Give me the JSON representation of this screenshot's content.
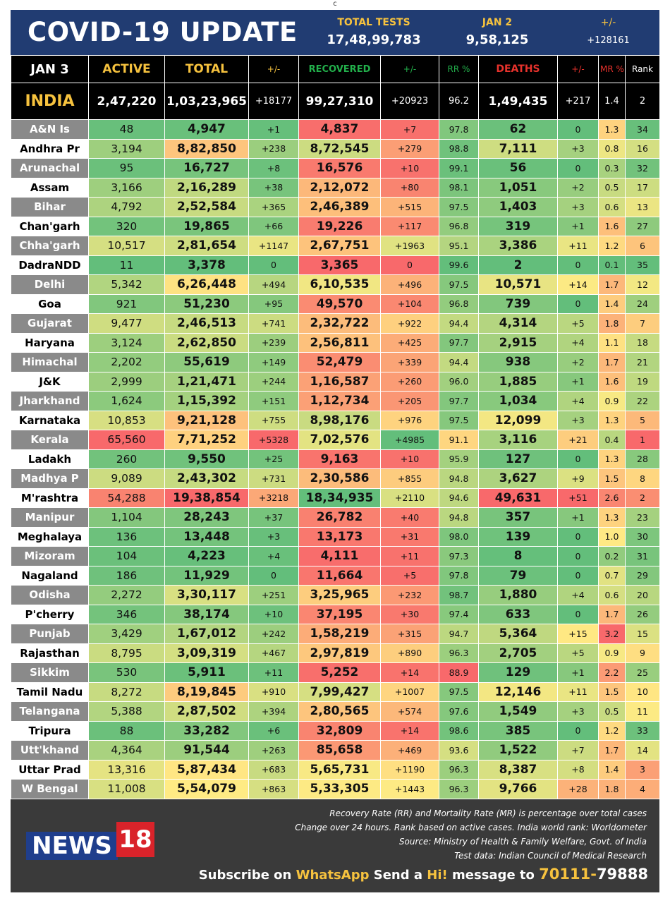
{
  "topmark": "c",
  "header": {
    "title": "COVID-19 UPDATE",
    "total_tests_label": "TOTAL TESTS",
    "total_tests_value": "17,48,99,783",
    "jan2_label": "JAN 2",
    "jan2_value": "9,58,125",
    "pm_label": "+/-",
    "pm_value": "+128161"
  },
  "columns": {
    "date": "JAN 3",
    "active": "ACTIVE",
    "total": "TOTAL",
    "total_change": "+/-",
    "recovered": "RECOVERED",
    "recovered_change": "+/-",
    "rr": "RR %",
    "deaths": "DEATHS",
    "deaths_change": "+/-",
    "mr": "MR %",
    "rank": "Rank"
  },
  "india": {
    "name": "INDIA",
    "active": "2,47,220",
    "total": "1,03,23,965",
    "total_change": "+18177",
    "recovered": "99,27,310",
    "recovered_change": "+20923",
    "rr": "96.2",
    "deaths": "1,49,435",
    "deaths_change": "+217",
    "mr": "1.4",
    "rank": "2"
  },
  "states": [
    {
      "name": "A&N Is",
      "active": "48",
      "total": "4,947",
      "tc": "+1",
      "rec": "4,837",
      "rc": "+7",
      "rr": "97.8",
      "deaths": "62",
      "dc": "0",
      "mr": "1.3",
      "rank": "34"
    },
    {
      "name": "Andhra Pr",
      "active": "3,194",
      "total": "8,82,850",
      "tc": "+238",
      "rec": "8,72,545",
      "rc": "+279",
      "rr": "98.8",
      "deaths": "7,111",
      "dc": "+3",
      "mr": "0.8",
      "rank": "16"
    },
    {
      "name": "Arunachal",
      "active": "95",
      "total": "16,727",
      "tc": "+8",
      "rec": "16,576",
      "rc": "+10",
      "rr": "99.1",
      "deaths": "56",
      "dc": "0",
      "mr": "0.3",
      "rank": "32"
    },
    {
      "name": "Assam",
      "active": "3,166",
      "total": "2,16,289",
      "tc": "+38",
      "rec": "2,12,072",
      "rc": "+80",
      "rr": "98.1",
      "deaths": "1,051",
      "dc": "+2",
      "mr": "0.5",
      "rank": "17"
    },
    {
      "name": "Bihar",
      "active": "4,792",
      "total": "2,52,584",
      "tc": "+365",
      "rec": "2,46,389",
      "rc": "+515",
      "rr": "97.5",
      "deaths": "1,403",
      "dc": "+3",
      "mr": "0.6",
      "rank": "13"
    },
    {
      "name": "Chan'garh",
      "active": "320",
      "total": "19,865",
      "tc": "+66",
      "rec": "19,226",
      "rc": "+117",
      "rr": "96.8",
      "deaths": "319",
      "dc": "+1",
      "mr": "1.6",
      "rank": "27"
    },
    {
      "name": "Chha'garh",
      "active": "10,517",
      "total": "2,81,654",
      "tc": "+1147",
      "rec": "2,67,751",
      "rc": "+1963",
      "rr": "95.1",
      "deaths": "3,386",
      "dc": "+11",
      "mr": "1.2",
      "rank": "6"
    },
    {
      "name": "DadraNDD",
      "active": "11",
      "total": "3,378",
      "tc": "0",
      "rec": "3,365",
      "rc": "0",
      "rr": "99.6",
      "deaths": "2",
      "dc": "0",
      "mr": "0.1",
      "rank": "35"
    },
    {
      "name": "Delhi",
      "active": "5,342",
      "total": "6,26,448",
      "tc": "+494",
      "rec": "6,10,535",
      "rc": "+496",
      "rr": "97.5",
      "deaths": "10,571",
      "dc": "+14",
      "mr": "1.7",
      "rank": "12"
    },
    {
      "name": "Goa",
      "active": "921",
      "total": "51,230",
      "tc": "+95",
      "rec": "49,570",
      "rc": "+104",
      "rr": "96.8",
      "deaths": "739",
      "dc": "0",
      "mr": "1.4",
      "rank": "24"
    },
    {
      "name": "Gujarat",
      "active": "9,477",
      "total": "2,46,513",
      "tc": "+741",
      "rec": "2,32,722",
      "rc": "+922",
      "rr": "94.4",
      "deaths": "4,314",
      "dc": "+5",
      "mr": "1.8",
      "rank": "7"
    },
    {
      "name": "Haryana",
      "active": "3,124",
      "total": "2,62,850",
      "tc": "+239",
      "rec": "2,56,811",
      "rc": "+425",
      "rr": "97.7",
      "deaths": "2,915",
      "dc": "+4",
      "mr": "1.1",
      "rank": "18"
    },
    {
      "name": "Himachal",
      "active": "2,202",
      "total": "55,619",
      "tc": "+149",
      "rec": "52,479",
      "rc": "+339",
      "rr": "94.4",
      "deaths": "938",
      "dc": "+2",
      "mr": "1.7",
      "rank": "21"
    },
    {
      "name": "J&K",
      "active": "2,999",
      "total": "1,21,471",
      "tc": "+244",
      "rec": "1,16,587",
      "rc": "+260",
      "rr": "96.0",
      "deaths": "1,885",
      "dc": "+1",
      "mr": "1.6",
      "rank": "19"
    },
    {
      "name": "Jharkhand",
      "active": "1,624",
      "total": "1,15,392",
      "tc": "+151",
      "rec": "1,12,734",
      "rc": "+205",
      "rr": "97.7",
      "deaths": "1,034",
      "dc": "+4",
      "mr": "0.9",
      "rank": "22"
    },
    {
      "name": "Karnataka",
      "active": "10,853",
      "total": "9,21,128",
      "tc": "+755",
      "rec": "8,98,176",
      "rc": "+976",
      "rr": "97.5",
      "deaths": "12,099",
      "dc": "+3",
      "mr": "1.3",
      "rank": "5"
    },
    {
      "name": "Kerala",
      "active": "65,560",
      "total": "7,71,252",
      "tc": "+5328",
      "rec": "7,02,576",
      "rc": "+4985",
      "rr": "91.1",
      "deaths": "3,116",
      "dc": "+21",
      "mr": "0.4",
      "rank": "1"
    },
    {
      "name": "Ladakh",
      "active": "260",
      "total": "9,550",
      "tc": "+25",
      "rec": "9,163",
      "rc": "+10",
      "rr": "95.9",
      "deaths": "127",
      "dc": "0",
      "mr": "1.3",
      "rank": "28"
    },
    {
      "name": "Madhya P",
      "active": "9,089",
      "total": "2,43,302",
      "tc": "+731",
      "rec": "2,30,586",
      "rc": "+855",
      "rr": "94.8",
      "deaths": "3,627",
      "dc": "+9",
      "mr": "1.5",
      "rank": "8"
    },
    {
      "name": "M'rashtra",
      "active": "54,288",
      "total": "19,38,854",
      "tc": "+3218",
      "rec": "18,34,935",
      "rc": "+2110",
      "rr": "94.6",
      "deaths": "49,631",
      "dc": "+51",
      "mr": "2.6",
      "rank": "2"
    },
    {
      "name": "Manipur",
      "active": "1,104",
      "total": "28,243",
      "tc": "+37",
      "rec": "26,782",
      "rc": "+40",
      "rr": "94.8",
      "deaths": "357",
      "dc": "+1",
      "mr": "1.3",
      "rank": "23"
    },
    {
      "name": "Meghalaya",
      "active": "136",
      "total": "13,448",
      "tc": "+3",
      "rec": "13,173",
      "rc": "+31",
      "rr": "98.0",
      "deaths": "139",
      "dc": "0",
      "mr": "1.0",
      "rank": "30"
    },
    {
      "name": "Mizoram",
      "active": "104",
      "total": "4,223",
      "tc": "+4",
      "rec": "4,111",
      "rc": "+11",
      "rr": "97.3",
      "deaths": "8",
      "dc": "0",
      "mr": "0.2",
      "rank": "31"
    },
    {
      "name": "Nagaland",
      "active": "186",
      "total": "11,929",
      "tc": "0",
      "rec": "11,664",
      "rc": "+5",
      "rr": "97.8",
      "deaths": "79",
      "dc": "0",
      "mr": "0.7",
      "rank": "29"
    },
    {
      "name": "Odisha",
      "active": "2,272",
      "total": "3,30,117",
      "tc": "+251",
      "rec": "3,25,965",
      "rc": "+232",
      "rr": "98.7",
      "deaths": "1,880",
      "dc": "+4",
      "mr": "0.6",
      "rank": "20"
    },
    {
      "name": "P'cherry",
      "active": "346",
      "total": "38,174",
      "tc": "+10",
      "rec": "37,195",
      "rc": "+30",
      "rr": "97.4",
      "deaths": "633",
      "dc": "0",
      "mr": "1.7",
      "rank": "26"
    },
    {
      "name": "Punjab",
      "active": "3,429",
      "total": "1,67,012",
      "tc": "+242",
      "rec": "1,58,219",
      "rc": "+315",
      "rr": "94.7",
      "deaths": "5,364",
      "dc": "+15",
      "mr": "3.2",
      "rank": "15"
    },
    {
      "name": "Rajasthan",
      "active": "8,795",
      "total": "3,09,319",
      "tc": "+467",
      "rec": "2,97,819",
      "rc": "+890",
      "rr": "96.3",
      "deaths": "2,705",
      "dc": "+5",
      "mr": "0.9",
      "rank": "9"
    },
    {
      "name": "Sikkim",
      "active": "530",
      "total": "5,911",
      "tc": "+11",
      "rec": "5,252",
      "rc": "+14",
      "rr": "88.9",
      "deaths": "129",
      "dc": "+1",
      "mr": "2.2",
      "rank": "25"
    },
    {
      "name": "Tamil Nadu",
      "active": "8,272",
      "total": "8,19,845",
      "tc": "+910",
      "rec": "7,99,427",
      "rc": "+1007",
      "rr": "97.5",
      "deaths": "12,146",
      "dc": "+11",
      "mr": "1.5",
      "rank": "10"
    },
    {
      "name": "Telangana",
      "active": "5,388",
      "total": "2,87,502",
      "tc": "+394",
      "rec": "2,80,565",
      "rc": "+574",
      "rr": "97.6",
      "deaths": "1,549",
      "dc": "+3",
      "mr": "0.5",
      "rank": "11"
    },
    {
      "name": "Tripura",
      "active": "88",
      "total": "33,282",
      "tc": "+6",
      "rec": "32,809",
      "rc": "+14",
      "rr": "98.6",
      "deaths": "385",
      "dc": "0",
      "mr": "1.2",
      "rank": "33"
    },
    {
      "name": "Utt'khand",
      "active": "4,364",
      "total": "91,544",
      "tc": "+263",
      "rec": "85,658",
      "rc": "+469",
      "rr": "93.6",
      "deaths": "1,522",
      "dc": "+7",
      "mr": "1.7",
      "rank": "14"
    },
    {
      "name": "Uttar Prad",
      "active": "13,316",
      "total": "5,87,434",
      "tc": "+683",
      "rec": "5,65,731",
      "rc": "+1190",
      "rr": "96.3",
      "deaths": "8,387",
      "dc": "+8",
      "mr": "1.4",
      "rank": "3"
    },
    {
      "name": "W Bengal",
      "active": "11,008",
      "total": "5,54,079",
      "tc": "+863",
      "rec": "5,33,305",
      "rc": "+1443",
      "rr": "96.3",
      "deaths": "9,766",
      "dc": "+28",
      "mr": "1.8",
      "rank": "4"
    }
  ],
  "footer": {
    "notes": [
      "Recovery Rate (RR) and Mortality Rate (MR) is percentage over total cases",
      "Change over 24 hours. Rank based on active cases. India world rank: Worldometer",
      "Source: Ministry of Health & Family Welfare, Govt. of India",
      "Test data: Indian Council of Medical Research"
    ],
    "logo_text": "NEWS",
    "logo_number": "18",
    "subscribe_a": "Subscribe on ",
    "subscribe_b": "WhatsApp",
    "subscribe_c": " Send a ",
    "subscribe_d": "Hi!",
    "subscribe_e": " message to ",
    "phone_a": "70111-",
    "phone_b": "79888"
  },
  "colors": {
    "header_bg": "#213c72",
    "accent_yellow": "#f6c23e",
    "recovered_green": "#22b04b",
    "deaths_red": "#e8322c",
    "name_gray": "#8a8a8a",
    "footer_bg": "#3a3a3a",
    "scale_low": "#63be7b",
    "scale_mid": "#ffeb84",
    "scale_high": "#f8696b"
  }
}
